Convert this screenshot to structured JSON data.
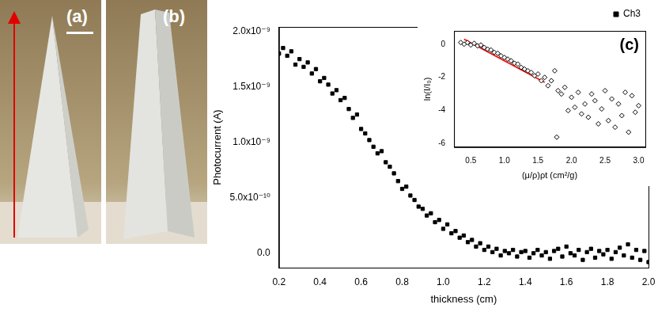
{
  "chart_data": [
    {
      "type": "scatter",
      "x_label": "thickness (cm)",
      "y_label": "Photocurrent (A)",
      "xlim": [
        0.2,
        2.0
      ],
      "xticks": [
        0.2,
        0.4,
        0.6,
        0.8,
        {
          "value": 1,
          "label": "1.0"
        },
        1.2,
        1.4,
        1.6,
        1.8,
        {
          "value": 2,
          "label": "2.0"
        }
      ],
      "ylim": [
        -1.3e-10,
        2.04e-09
      ],
      "yticks": [
        {
          "value": 0,
          "label": "0.0"
        },
        {
          "value": 5e-10,
          "label": "5.0x10⁻¹⁰"
        },
        {
          "value": 1e-09,
          "label": "1.0x10⁻⁹"
        },
        {
          "value": 1.5e-09,
          "label": "1.5x10⁻⁹"
        },
        {
          "value": 2e-09,
          "label": "2.0x10⁻⁹"
        }
      ],
      "grid": false,
      "legend": "top-right",
      "x": [
        0.2,
        0.22,
        0.24,
        0.26,
        0.28,
        0.3,
        0.32,
        0.34,
        0.36,
        0.38,
        0.4,
        0.42,
        0.44,
        0.46,
        0.48,
        0.5,
        0.52,
        0.54,
        0.56,
        0.58,
        0.6,
        0.62,
        0.64,
        0.66,
        0.68,
        0.7,
        0.72,
        0.74,
        0.76,
        0.78,
        0.8,
        0.82,
        0.84,
        0.86,
        0.88,
        0.9,
        0.92,
        0.94,
        0.96,
        0.98,
        1.0,
        1.02,
        1.04,
        1.06,
        1.08,
        1.1,
        1.12,
        1.14,
        1.16,
        1.18,
        1.2,
        1.22,
        1.24,
        1.26,
        1.28,
        1.3,
        1.32,
        1.34,
        1.36,
        1.38,
        1.4,
        1.42,
        1.44,
        1.46,
        1.48,
        1.5,
        1.52,
        1.54,
        1.56,
        1.58,
        1.6,
        1.62,
        1.64,
        1.66,
        1.68,
        1.7,
        1.72,
        1.74,
        1.76,
        1.78,
        1.8,
        1.82,
        1.84,
        1.86,
        1.88,
        1.9,
        1.92,
        1.94,
        1.96,
        1.98,
        2.0
      ],
      "series": [
        {
          "name": "Ch3",
          "color": "#000000",
          "marker": "square",
          "values": [
            1.8e-09,
            1.85e-09,
            1.78e-09,
            1.82e-09,
            1.7e-09,
            1.75e-09,
            1.68e-09,
            1.72e-09,
            1.62e-09,
            1.66e-09,
            1.55e-09,
            1.58e-09,
            1.52e-09,
            1.44e-09,
            1.47e-09,
            1.38e-09,
            1.4e-09,
            1.3e-09,
            1.22e-09,
            1.25e-09,
            1.12e-09,
            1.08e-09,
            1.02e-09,
            9.6e-10,
            9e-10,
            9.2e-10,
            8.2e-10,
            7.8e-10,
            7.2e-10,
            6.5e-10,
            5.8e-10,
            6e-10,
            5.2e-10,
            4.8e-10,
            4.2e-10,
            4e-10,
            3.4e-10,
            3.6e-10,
            2.8e-10,
            3e-10,
            2.2e-10,
            2.6e-10,
            1.8e-10,
            2e-10,
            1.4e-10,
            1.6e-10,
            1e-10,
            1.2e-10,
            6e-11,
            9e-11,
            3e-11,
            6e-11,
            1e-11,
            4e-11,
            -2e-11,
            2e-11,
            0.0,
            3e-11,
            -3e-11,
            1e-11,
            2e-11,
            -4e-11,
            0.0,
            3e-11,
            -2e-11,
            1e-11,
            -5e-11,
            2e-11,
            4e-11,
            -3e-11,
            6e-11,
            0.0,
            -2e-11,
            3e-11,
            -6e-11,
            1e-11,
            4e-11,
            -4e-11,
            2e-11,
            -1e-11,
            3e-11,
            -5e-11,
            1e-11,
            5e-11,
            -2e-11,
            8e-11,
            -4e-11,
            3e-11,
            -6e-11,
            2e-11,
            -8e-11
          ]
        }
      ]
    },
    {
      "type": "scatter",
      "x_label": "(μ/ρ)ρt (cm²/g)",
      "y_label": "ln(I/I₀)",
      "annotation": "(c)",
      "xlim": [
        0.25,
        3.1
      ],
      "xticks": [
        0.5,
        {
          "value": 1,
          "label": "1.0"
        },
        1.5,
        {
          "value": 2,
          "label": "2.0"
        },
        2.5,
        {
          "value": 3,
          "label": "3.0"
        }
      ],
      "ylim": [
        -6.2,
        0.8
      ],
      "yticks": [
        -6,
        -4,
        -2,
        0
      ],
      "grid": false,
      "series": [
        {
          "color": "#000000",
          "marker": "open_diamond",
          "x": [
            0.35,
            0.4,
            0.45,
            0.5,
            0.55,
            0.6,
            0.65,
            0.7,
            0.75,
            0.8,
            0.85,
            0.9,
            0.95,
            1.0,
            1.05,
            1.1,
            1.15,
            1.2,
            1.25,
            1.3,
            1.35,
            1.4,
            1.45,
            1.5,
            1.55,
            1.6,
            1.65,
            1.7,
            1.75,
            1.78,
            1.8,
            1.85,
            1.9,
            1.95,
            2.0,
            2.05,
            2.1,
            2.15,
            2.2,
            2.25,
            2.3,
            2.35,
            2.4,
            2.45,
            2.5,
            2.55,
            2.6,
            2.65,
            2.7,
            2.75,
            2.8,
            2.85,
            2.9,
            2.95,
            3.0
          ],
          "values": [
            0.1,
            0.0,
            0.1,
            -0.05,
            0.05,
            -0.1,
            -0.05,
            -0.2,
            -0.3,
            -0.35,
            -0.5,
            -0.55,
            -0.7,
            -0.8,
            -0.9,
            -1.0,
            -1.15,
            -1.2,
            -1.4,
            -1.5,
            -1.6,
            -1.7,
            -1.9,
            -1.8,
            -2.2,
            -2.0,
            -2.5,
            -2.2,
            -1.6,
            -5.6,
            -2.8,
            -3.0,
            -2.6,
            -4.0,
            -3.2,
            -3.8,
            -2.9,
            -4.2,
            -3.6,
            -4.4,
            -3.0,
            -3.4,
            -4.8,
            -3.9,
            -2.8,
            -4.6,
            -3.3,
            -5.0,
            -3.6,
            -4.3,
            -2.9,
            -5.3,
            -3.1,
            -4.1,
            -3.7
          ]
        },
        {
          "color": "#ff0000",
          "marker": "none",
          "line_style": "solid",
          "x": [
            0.4,
            1.6
          ],
          "values": [
            0.3,
            -2.3
          ]
        }
      ]
    }
  ],
  "photos": [
    {
      "label": "(a)"
    },
    {
      "label": "(b)"
    }
  ]
}
